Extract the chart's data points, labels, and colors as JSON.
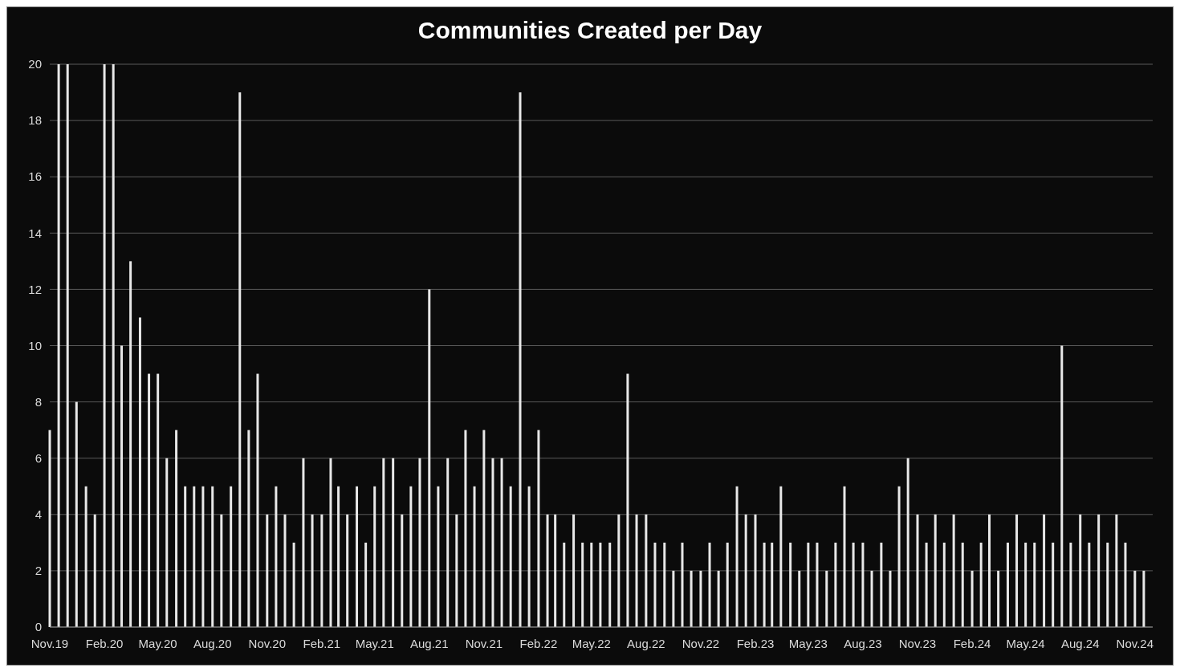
{
  "chart_data": {
    "type": "bar",
    "title": "Communities Created per Day",
    "x": [
      "2019-11-01",
      "2019-11-16",
      "2019-12-01",
      "2019-12-16",
      "2020-01-01",
      "2020-01-16",
      "2020-02-01",
      "2020-02-16",
      "2020-03-01",
      "2020-03-16",
      "2020-04-01",
      "2020-04-16",
      "2020-05-01",
      "2020-05-16",
      "2020-06-01",
      "2020-06-16",
      "2020-07-01",
      "2020-07-16",
      "2020-08-01",
      "2020-08-16",
      "2020-09-01",
      "2020-09-16",
      "2020-10-01",
      "2020-10-16",
      "2020-11-01",
      "2020-11-16",
      "2020-12-01",
      "2020-12-16",
      "2021-01-01",
      "2021-01-16",
      "2021-02-01",
      "2021-02-16",
      "2021-03-01",
      "2021-03-16",
      "2021-04-01",
      "2021-04-16",
      "2021-05-01",
      "2021-05-16",
      "2021-06-01",
      "2021-06-16",
      "2021-07-01",
      "2021-07-16",
      "2021-08-01",
      "2021-08-16",
      "2021-09-01",
      "2021-09-16",
      "2021-10-01",
      "2021-10-16",
      "2021-11-01",
      "2021-11-16",
      "2021-12-01",
      "2021-12-16",
      "2022-01-01",
      "2022-01-16",
      "2022-02-01",
      "2022-02-16",
      "2022-03-01",
      "2022-03-16",
      "2022-04-01",
      "2022-04-16",
      "2022-05-01",
      "2022-05-16",
      "2022-06-01",
      "2022-06-16",
      "2022-07-01",
      "2022-07-16",
      "2022-08-01",
      "2022-08-16",
      "2022-09-01",
      "2022-09-16",
      "2022-10-01",
      "2022-10-16",
      "2022-11-01",
      "2022-11-16",
      "2022-12-01",
      "2022-12-16",
      "2023-01-01",
      "2023-01-16",
      "2023-02-01",
      "2023-02-16",
      "2023-03-01",
      "2023-03-16",
      "2023-04-01",
      "2023-04-16",
      "2023-05-01",
      "2023-05-16",
      "2023-06-01",
      "2023-06-16",
      "2023-07-01",
      "2023-07-16",
      "2023-08-01",
      "2023-08-16",
      "2023-09-01",
      "2023-09-16",
      "2023-10-01",
      "2023-10-16",
      "2023-11-01",
      "2023-11-16",
      "2023-12-01",
      "2023-12-16",
      "2024-01-01",
      "2024-01-16",
      "2024-02-01",
      "2024-02-16",
      "2024-03-01",
      "2024-03-16",
      "2024-04-01",
      "2024-04-16",
      "2024-05-01",
      "2024-05-16",
      "2024-06-01",
      "2024-06-16",
      "2024-07-01",
      "2024-07-16",
      "2024-08-01",
      "2024-08-16",
      "2024-09-01",
      "2024-09-16",
      "2024-10-01",
      "2024-10-16",
      "2024-11-01",
      "2024-11-16"
    ],
    "values": [
      7,
      20,
      20,
      8,
      5,
      4,
      20,
      20,
      10,
      13,
      11,
      9,
      9,
      6,
      7,
      5,
      5,
      5,
      5,
      4,
      5,
      19,
      7,
      9,
      4,
      5,
      4,
      3,
      6,
      4,
      4,
      6,
      5,
      4,
      5,
      3,
      5,
      6,
      6,
      4,
      5,
      6,
      12,
      5,
      6,
      4,
      7,
      5,
      7,
      6,
      6,
      5,
      19,
      5,
      7,
      4,
      4,
      3,
      4,
      3,
      3,
      3,
      3,
      4,
      9,
      4,
      4,
      3,
      3,
      2,
      3,
      2,
      2,
      3,
      2,
      3,
      5,
      4,
      4,
      3,
      3,
      5,
      3,
      2,
      3,
      3,
      2,
      3,
      5,
      3,
      3,
      2,
      3,
      2,
      5,
      6,
      4,
      3,
      4,
      3,
      4,
      3,
      2,
      3,
      4,
      2,
      3,
      4,
      3,
      3,
      4,
      3,
      10,
      3,
      4,
      3,
      4,
      3,
      4,
      3,
      2,
      2
    ],
    "color": "#e8e8e8",
    "xlim": [
      "2019-11-01",
      "2024-12-01"
    ],
    "xticks": [
      {
        "value": "2019-11-01",
        "label": "Nov.19"
      },
      {
        "value": "2020-02-01",
        "label": "Feb.20"
      },
      {
        "value": "2020-05-01",
        "label": "May.20"
      },
      {
        "value": "2020-08-01",
        "label": "Aug.20"
      },
      {
        "value": "2020-11-01",
        "label": "Nov.20"
      },
      {
        "value": "2021-02-01",
        "label": "Feb.21"
      },
      {
        "value": "2021-05-01",
        "label": "May.21"
      },
      {
        "value": "2021-08-01",
        "label": "Aug.21"
      },
      {
        "value": "2021-11-01",
        "label": "Nov.21"
      },
      {
        "value": "2022-02-01",
        "label": "Feb.22"
      },
      {
        "value": "2022-05-01",
        "label": "May.22"
      },
      {
        "value": "2022-08-01",
        "label": "Aug.22"
      },
      {
        "value": "2022-11-01",
        "label": "Nov.22"
      },
      {
        "value": "2023-02-01",
        "label": "Feb.23"
      },
      {
        "value": "2023-05-01",
        "label": "May.23"
      },
      {
        "value": "2023-08-01",
        "label": "Aug.23"
      },
      {
        "value": "2023-11-01",
        "label": "Nov.23"
      },
      {
        "value": "2024-02-01",
        "label": "Feb.24"
      },
      {
        "value": "2024-05-01",
        "label": "May.24"
      },
      {
        "value": "2024-08-01",
        "label": "Aug.24"
      },
      {
        "value": "2024-11-01",
        "label": "Nov.24"
      }
    ],
    "ylim": [
      0,
      20
    ],
    "yticks": [
      0,
      2,
      4,
      6,
      8,
      10,
      12,
      14,
      16,
      18,
      20
    ],
    "grid": "y"
  }
}
